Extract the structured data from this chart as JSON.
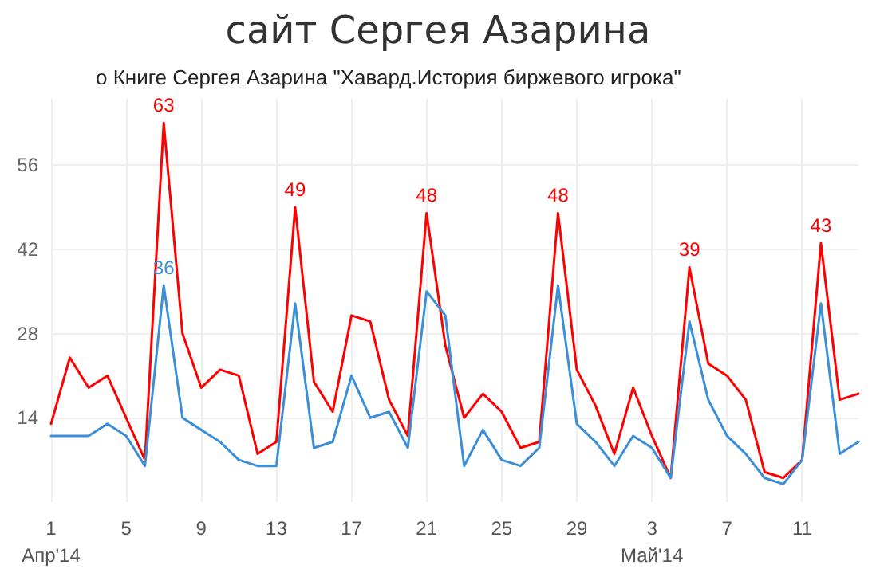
{
  "chart_data": {
    "type": "line",
    "title": "сайт Сергея Азарина",
    "subtitle": "о Книге Сергея Азарина \"Хавард.История биржевого игрока\"",
    "x": [
      "2014-04-01",
      "2014-04-02",
      "2014-04-03",
      "2014-04-04",
      "2014-04-05",
      "2014-04-06",
      "2014-04-07",
      "2014-04-08",
      "2014-04-09",
      "2014-04-10",
      "2014-04-11",
      "2014-04-12",
      "2014-04-13",
      "2014-04-14",
      "2014-04-15",
      "2014-04-16",
      "2014-04-17",
      "2014-04-18",
      "2014-04-19",
      "2014-04-20",
      "2014-04-21",
      "2014-04-22",
      "2014-04-23",
      "2014-04-24",
      "2014-04-25",
      "2014-04-26",
      "2014-04-27",
      "2014-04-28",
      "2014-04-29",
      "2014-04-30",
      "2014-05-01",
      "2014-05-02",
      "2014-05-03",
      "2014-05-04",
      "2014-05-05",
      "2014-05-06",
      "2014-05-07",
      "2014-05-08",
      "2014-05-09",
      "2014-05-10",
      "2014-05-11",
      "2014-05-12",
      "2014-05-13",
      "2014-05-14"
    ],
    "series": [
      {
        "color": "#ff0000",
        "values": [
          13,
          24,
          19,
          21,
          14,
          7,
          63,
          28,
          19,
          22,
          21,
          8,
          10,
          49,
          20,
          15,
          31,
          30,
          17,
          11,
          48,
          26,
          14,
          18,
          15,
          9,
          10,
          48,
          22,
          16,
          8,
          19,
          11,
          4,
          39,
          23,
          21,
          17,
          5,
          4,
          7,
          43,
          17,
          18
        ],
        "value_labels": [
          null,
          null,
          null,
          null,
          null,
          null,
          "63",
          null,
          null,
          null,
          null,
          null,
          null,
          "49",
          null,
          null,
          null,
          null,
          null,
          null,
          "48",
          null,
          null,
          null,
          null,
          null,
          null,
          "48",
          null,
          null,
          null,
          null,
          null,
          null,
          "39",
          null,
          null,
          null,
          null,
          null,
          null,
          "43",
          null,
          null
        ]
      },
      {
        "color": "#3b8fd9",
        "values": [
          11,
          11,
          11,
          13,
          11,
          6,
          36,
          14,
          12,
          10,
          7,
          6,
          6,
          33,
          9,
          10,
          21,
          14,
          15,
          9,
          35,
          31,
          6,
          12,
          7,
          6,
          9,
          36,
          13,
          10,
          6,
          11,
          9,
          4,
          30,
          17,
          11,
          8,
          4,
          3,
          7,
          33,
          8,
          10
        ],
        "value_labels": [
          null,
          null,
          null,
          null,
          null,
          null,
          "36",
          null,
          null,
          null,
          null,
          null,
          null,
          null,
          null,
          null,
          null,
          null,
          null,
          null,
          null,
          null,
          null,
          null,
          null,
          null,
          null,
          null,
          null,
          null,
          null,
          null,
          null,
          null,
          null,
          null,
          null,
          null,
          null,
          null,
          null,
          null,
          null,
          null
        ]
      }
    ],
    "xlim": [
      "2014-04-01",
      "2014-05-14"
    ],
    "xticks": [
      {
        "value": "2014-04-01",
        "label": "1\nАпр'14"
      },
      {
        "value": "2014-04-05",
        "label": "5"
      },
      {
        "value": "2014-04-09",
        "label": "9"
      },
      {
        "value": "2014-04-13",
        "label": "13"
      },
      {
        "value": "2014-04-17",
        "label": "17"
      },
      {
        "value": "2014-04-21",
        "label": "21"
      },
      {
        "value": "2014-04-25",
        "label": "25"
      },
      {
        "value": "2014-04-29",
        "label": "29"
      },
      {
        "value": "2014-05-03",
        "label": "3\nМай'14"
      },
      {
        "value": "2014-05-07",
        "label": "7"
      },
      {
        "value": "2014-05-11",
        "label": "11"
      }
    ],
    "ylim": [
      0,
      67
    ],
    "yticks": [
      14,
      28,
      42,
      56
    ],
    "grid": true,
    "marker": "none",
    "line_style": "solid"
  }
}
